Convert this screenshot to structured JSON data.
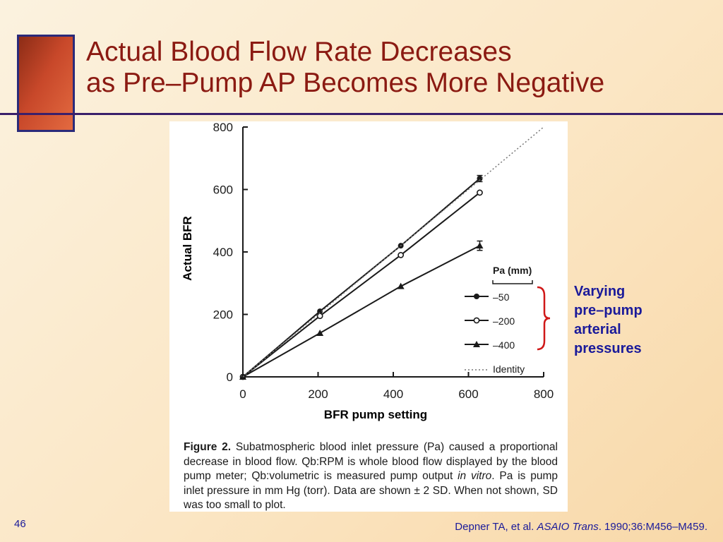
{
  "slide": {
    "title_line1": "Actual Blood Flow Rate Decreases",
    "title_line2": "as Pre–Pump AP Becomes More Negative",
    "number": "46"
  },
  "annotation": {
    "line1": "Varying",
    "line2": "pre–pump",
    "line3": "arterial",
    "line4": "pressures",
    "color": "#1a1a9a"
  },
  "figure": {
    "caption_label": "Figure 2.",
    "caption_part1": " Subatmospheric blood inlet pressure (Pa) caused a proportional decrease in blood flow. Qb:RPM is whole blood flow displayed by the blood pump meter; Qb:volumetric is measured pump output ",
    "caption_italic": "in vitro",
    "caption_part2": ". Pa is pump inlet pressure in mm Hg (torr). Data are shown ± 2 SD. When not shown, SD was too small to plot."
  },
  "citation": {
    "authors": "Depner TA, et al. ",
    "journal": "ASAIO Trans",
    "rest": ". 1990;36:M456–M459."
  },
  "chart_data": {
    "type": "line",
    "xlabel": "BFR pump setting",
    "ylabel": "Actual BFR",
    "xlim": [
      0,
      800
    ],
    "ylim": [
      0,
      800
    ],
    "xticks": [
      "0",
      "200",
      "400",
      "600",
      "800"
    ],
    "yticks": [
      "0",
      "200",
      "400",
      "600",
      "800"
    ],
    "legend_title": "Pa (mm)",
    "legend_position": "right",
    "series": [
      {
        "name": "–50",
        "marker": "filled-circle",
        "x": [
          0,
          205,
          420,
          630
        ],
        "y": [
          0,
          210,
          420,
          635
        ],
        "err": [
          0,
          0,
          0,
          10
        ]
      },
      {
        "name": "–200",
        "marker": "open-circle",
        "x": [
          0,
          205,
          420,
          630
        ],
        "y": [
          0,
          195,
          390,
          590
        ],
        "err": [
          0,
          0,
          0,
          0
        ]
      },
      {
        "name": "–400",
        "marker": "filled-triangle",
        "x": [
          0,
          205,
          420,
          630
        ],
        "y": [
          0,
          140,
          290,
          420
        ],
        "err": [
          0,
          0,
          0,
          15
        ]
      },
      {
        "name": "Identity",
        "style": "dotted",
        "x": [
          0,
          800
        ],
        "y": [
          0,
          800
        ]
      }
    ]
  }
}
